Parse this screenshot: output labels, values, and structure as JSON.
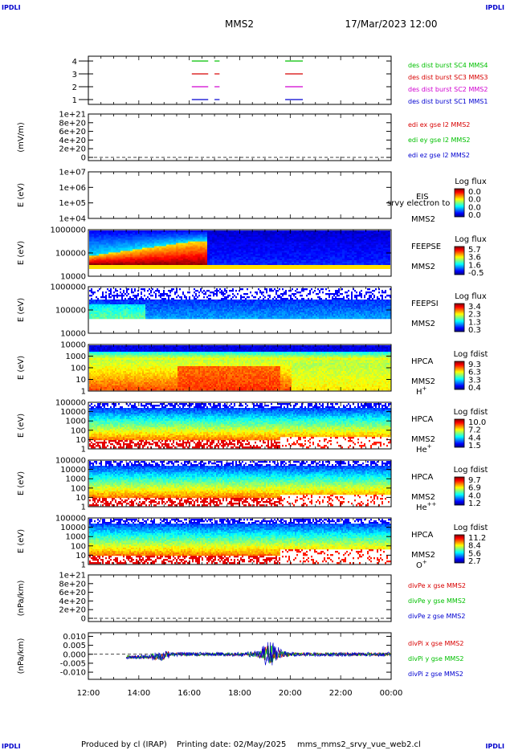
{
  "header": {
    "corner_tl": "IPDLI",
    "corner_tr": "IPDLI",
    "corner_bl": "IPDLI",
    "corner_br": "IPDLI",
    "spacecraft": "MMS2",
    "datetime": "17/Mar/2023 12:00"
  },
  "footer": {
    "producer": "Produced by cl (IRAP)",
    "printing_date": "Printing date: 02/May/2025",
    "script": "mms_mms2_srvy_vue_web2.cl"
  },
  "colors": {
    "red": "#d80000",
    "green": "#00c000",
    "blue": "#0000d0",
    "magenta": "#d000d0"
  },
  "chart_data": {
    "type": "heatmap",
    "x_tick_labels": [
      "12:00",
      "14:00",
      "16:00",
      "18:00",
      "20:00",
      "22:00",
      "00:00"
    ],
    "x_range_hours": [
      12,
      24
    ],
    "panels": [
      {
        "id": "burst",
        "type": "line",
        "ylim": [
          0.5,
          4.5
        ],
        "ytick_labels": [
          "4",
          "3",
          "2",
          "1"
        ],
        "series": [
          {
            "name": "des dist burst SC1 MMS1",
            "color": "#0000d0",
            "level": 1
          },
          {
            "name": "des dist burst SC2 MMS2",
            "color": "#d000d0",
            "level": 2
          },
          {
            "name": "des dist burst SC3 MMS3",
            "color": "#d80000",
            "level": 3
          },
          {
            "name": "des dist burst SC4 MMS4",
            "color": "#00c000",
            "level": 4
          }
        ],
        "intervals_hours": [
          [
            16.1,
            16.75
          ],
          [
            17.0,
            17.2
          ],
          [
            19.8,
            20.5
          ]
        ]
      },
      {
        "id": "edi",
        "type": "line",
        "ylabel": "(mV/m)",
        "ytick_labels": [
          "1e+21",
          "8e+20",
          "6e+20",
          "4e+20",
          "2e+20",
          "0"
        ],
        "ylim": [
          0,
          1e+21
        ],
        "zero_dashed": true,
        "series": [
          {
            "name": "edi ex gse l2 MMS2",
            "color": "#d80000"
          },
          {
            "name": "edi ey gse l2 MMS2",
            "color": "#00c000"
          },
          {
            "name": "edi ez gse l2 MMS2",
            "color": "#0000d0"
          }
        ]
      },
      {
        "id": "eis",
        "type": "heatmap",
        "ylabel": "E (eV)",
        "ytick_labels": [
          "1e+07",
          "1e+06",
          "1e+05",
          "1e+04"
        ],
        "ylim": [
          10000.0,
          10000000.0
        ],
        "labels": [
          "EIS",
          "srvy electron to",
          "MMS2"
        ],
        "colorbar_title": "Log flux",
        "colorbar_ticks": [
          "0.0",
          "0.0",
          "0.0",
          "0.0"
        ]
      },
      {
        "id": "feepse",
        "type": "heatmap",
        "ylabel": "E (eV)",
        "ytick_labels": [
          "1000000",
          "100000",
          "10000"
        ],
        "ylim": [
          10000.0,
          1000000.0
        ],
        "labels": [
          "FEEPSE",
          "MMS2"
        ],
        "colorbar_title": "Log flux",
        "colorbar_ticks": [
          "5.7",
          "3.6",
          "1.6",
          "-0.5"
        ]
      },
      {
        "id": "feepsi",
        "type": "heatmap",
        "ylabel": "E (eV)",
        "ytick_labels": [
          "1000000",
          "100000",
          "10000"
        ],
        "ylim": [
          10000.0,
          1000000.0
        ],
        "labels": [
          "FEEPSI",
          "MMS2"
        ],
        "colorbar_title": "Log flux",
        "colorbar_ticks": [
          "3.4",
          "2.3",
          "1.3",
          "0.3"
        ]
      },
      {
        "id": "hpca_h",
        "type": "heatmap",
        "ylabel": "E (eV)",
        "ytick_labels": [
          "10000",
          "1000",
          "100",
          "10",
          "1"
        ],
        "ylim": [
          1,
          40000
        ],
        "labels": [
          "HPCA",
          "MMS2"
        ],
        "species": "H",
        "species_sup": "+",
        "colorbar_title": "Log fdist",
        "colorbar_ticks": [
          "9.3",
          "6.3",
          "3.3",
          "0.4"
        ]
      },
      {
        "id": "hpca_he",
        "type": "heatmap",
        "ylabel": "E (eV)",
        "ytick_labels": [
          "100000",
          "10000",
          "1000",
          "100",
          "10",
          "1"
        ],
        "ylim": [
          1,
          100000
        ],
        "labels": [
          "HPCA",
          "MMS2"
        ],
        "species": "He",
        "species_sup": "+",
        "colorbar_title": "Log fdist",
        "colorbar_ticks": [
          "10.0",
          "7.2",
          "4.4",
          "1.5"
        ]
      },
      {
        "id": "hpca_hepp",
        "type": "heatmap",
        "ylabel": "E (eV)",
        "ytick_labels": [
          "100000",
          "10000",
          "1000",
          "100",
          "10",
          "1"
        ],
        "ylim": [
          1,
          100000
        ],
        "labels": [
          "HPCA",
          "MMS2"
        ],
        "species": "He",
        "species_sup": "++",
        "colorbar_title": "Log fdist",
        "colorbar_ticks": [
          "9.7",
          "6.9",
          "4.0",
          "1.2"
        ]
      },
      {
        "id": "hpca_o",
        "type": "heatmap",
        "ylabel": "E (eV)",
        "ytick_labels": [
          "100000",
          "10000",
          "1000",
          "100",
          "10",
          "1"
        ],
        "ylim": [
          1,
          100000
        ],
        "labels": [
          "HPCA",
          "MMS2"
        ],
        "species": "O",
        "species_sup": "+",
        "colorbar_title": "Log fdist",
        "colorbar_ticks": [
          "11.2",
          "8.4",
          "5.6",
          "2.7"
        ]
      },
      {
        "id": "divpe",
        "type": "line",
        "ylabel": "(nPa/km)",
        "ytick_labels": [
          "1e+21",
          "8e+20",
          "6e+20",
          "4e+20",
          "2e+20",
          "0"
        ],
        "ylim": [
          0,
          1e+21
        ],
        "zero_dashed": true,
        "series": [
          {
            "name": "divPe x gse MMS2",
            "color": "#d80000"
          },
          {
            "name": "divPe y gse MMS2",
            "color": "#00c000"
          },
          {
            "name": "divPe z gse MMS2",
            "color": "#0000d0"
          }
        ]
      },
      {
        "id": "divpi",
        "type": "line",
        "ylabel": "(nPa/km)",
        "ytick_labels": [
          "0.010",
          "0.005",
          "0.000",
          "-0.005",
          "-0.010"
        ],
        "ylim": [
          -0.014,
          0.012
        ],
        "zero_dashed": true,
        "data_start_hours": 13.5,
        "series": [
          {
            "name": "divPi x gse MMS2",
            "color": "#d80000"
          },
          {
            "name": "divPi y gse MMS2",
            "color": "#00c000"
          },
          {
            "name": "divPi z gse MMS2",
            "color": "#0000d0"
          }
        ]
      }
    ]
  }
}
